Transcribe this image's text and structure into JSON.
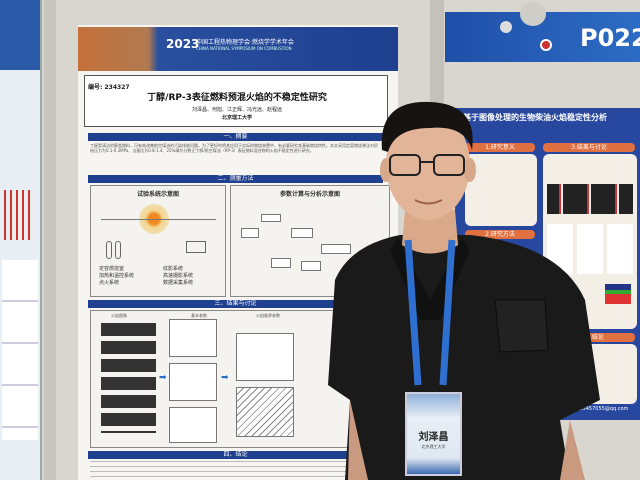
{
  "main_poster": {
    "banner": {
      "year": "2023",
      "conference": "中国工程热物理学会·燃烧学学术年会",
      "conference_en": "CHINA NATIONAL SYMPOSIUM ON COMBUSTION"
    },
    "number": "编号: 234327",
    "title": "丁醇/RP-3表征燃料预混火焰的不稳定性研究",
    "authors": "刘泽昌、何旭、江正辉、冯光远、赵程远",
    "affiliation": "北京理工大学",
    "sections": {
      "abstract": "一、摘要",
      "methods": "二、测量方法",
      "results": "三、结果与讨论",
      "conclusion": "四、结论"
    },
    "abstract_text": "丁醇是清洁的醇类燃料，可有效改善航空煤油的污染排放问题。为了更好的将其应用于实际的燃烧装置中，有必要研究其基础燃烧特性。本文采用定容燃烧弹法对初始压力为0.1-0.3MPa、当量比为0.8-1.4、25%摩尔分数正丁醇/航空煤油（RP-3）表征燃料混合物的火焰不稳定性进行研究。",
    "diagram_titles": [
      "试验系统示意图",
      "参数计算与分析示意图"
    ],
    "system_items": [
      "定容燃烧室",
      "加热和温控系统",
      "点火系统",
      "纹影系统",
      "高速摄影系统",
      "数据采集系统"
    ],
    "result_labels": [
      "火焰图像",
      "基本参数",
      "火焰临界参数"
    ]
  },
  "right_banner": {
    "code": "P022"
  },
  "right_poster": {
    "title": "基于图像处理的生物柴油火焰稳定性分析",
    "sections": [
      "1.研究意义",
      "2.研究方法",
      "3.结果与讨论",
      "4.结论"
    ],
    "email": "1725457055@qq.com"
  },
  "badge": {
    "name": "刘泽昌",
    "affiliation": "北京理工大学"
  },
  "colors": {
    "poster_blue": "#1f3f8f",
    "wall": "#d9d6cf",
    "shirt": "#1a1a1a",
    "lanyard": "#2f6fd0",
    "accent_orange": "#e07040"
  }
}
